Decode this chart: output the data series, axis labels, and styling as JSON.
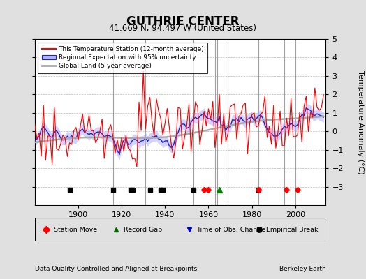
{
  "title": "GUTHRIE CENTER",
  "subtitle": "41.669 N, 94.497 W (United States)",
  "ylabel": "Temperature Anomaly (°C)",
  "xlabel_note": "Data Quality Controlled and Aligned at Breakpoints",
  "credit": "Berkeley Earth",
  "ylim": [
    -4,
    5
  ],
  "xlim": [
    1880,
    2014
  ],
  "xticks": [
    1900,
    1920,
    1940,
    1960,
    1980,
    2000
  ],
  "yticks": [
    -3,
    -2,
    -1,
    0,
    1,
    2,
    3,
    4,
    5
  ],
  "background_color": "#e0e0e0",
  "plot_bg_color": "#ffffff",
  "grid_color": "#cccccc",
  "vertical_lines": [
    1916,
    1931,
    1953,
    1963,
    1964,
    1969,
    1983,
    1995,
    2000
  ],
  "station_moves": [
    1958,
    1960,
    1983,
    1996,
    2001
  ],
  "record_gaps": [
    1965
  ],
  "obs_changes": [],
  "empirical_breaks": [
    1896,
    1916,
    1924,
    1925,
    1933,
    1938,
    1939,
    1953,
    1983
  ],
  "marker_y": -3.15,
  "legend_labels": {
    "red_line": "This Temperature Station (12-month average)",
    "blue_band": "Regional Expectation with 95% uncertainty",
    "gray_line": "Global Land (5-year average)"
  },
  "seed": 17
}
